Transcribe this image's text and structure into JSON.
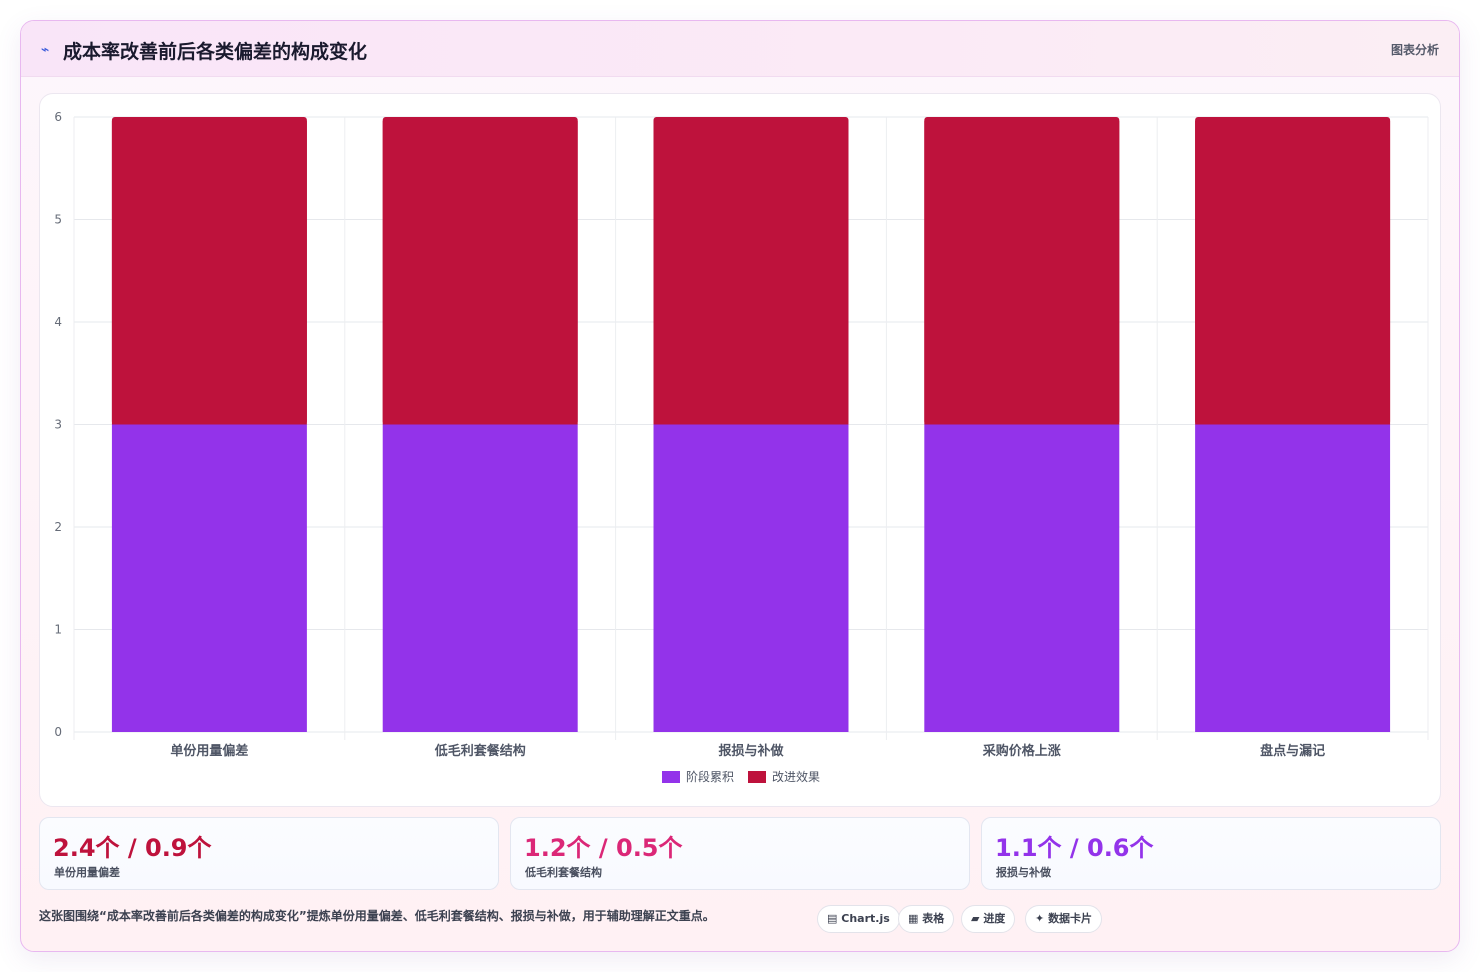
{
  "header": {
    "icon": "trend-line-icon",
    "title": "成本率改善前后各类偏差的构成变化",
    "right_label": "图表分析"
  },
  "colors": {
    "series_purple": "#9333ea",
    "series_crimson": "#be123c",
    "accent_pink": "#db2777"
  },
  "chart_data": {
    "type": "bar",
    "stacked": true,
    "categories": [
      "单份用量偏差",
      "低毛利套餐结构",
      "报损与补做",
      "采购价格上涨",
      "盘点与漏记"
    ],
    "series": [
      {
        "name": "阶段累积",
        "values": [
          3,
          3,
          3,
          3,
          3
        ],
        "color": "#9333ea"
      },
      {
        "name": "改进效果",
        "values": [
          3,
          3,
          3,
          3,
          3
        ],
        "color": "#be123c"
      }
    ],
    "yticks": [
      "0",
      "1",
      "2",
      "3",
      "4",
      "5",
      "6"
    ],
    "ylim": [
      0,
      6
    ],
    "grid": true,
    "legend": "bottom"
  },
  "stats": [
    {
      "value": "2.4个 / 0.9个",
      "label": "单份用量偏差",
      "color": "#be123c"
    },
    {
      "value": "1.2个 / 0.5个",
      "label": "低毛利套餐结构",
      "color": "#db2777"
    },
    {
      "value": "1.1个 / 0.6个",
      "label": "报损与补做",
      "color": "#9333ea"
    }
  ],
  "footnote": "这张图围绕“成本率改善前后各类偏差的构成变化”提炼单份用量偏差、低毛利套餐结构、报损与补做，用于辅助理解正文重点。",
  "tags": [
    {
      "icon": "chart-icon",
      "glyph": "▤",
      "label": "Chart.js"
    },
    {
      "icon": "table-icon",
      "glyph": "▦",
      "label": "表格"
    },
    {
      "icon": "progress-icon",
      "glyph": "▰",
      "label": "进度"
    },
    {
      "icon": "sparkle-icon",
      "glyph": "✦",
      "label": "数据卡片"
    }
  ]
}
